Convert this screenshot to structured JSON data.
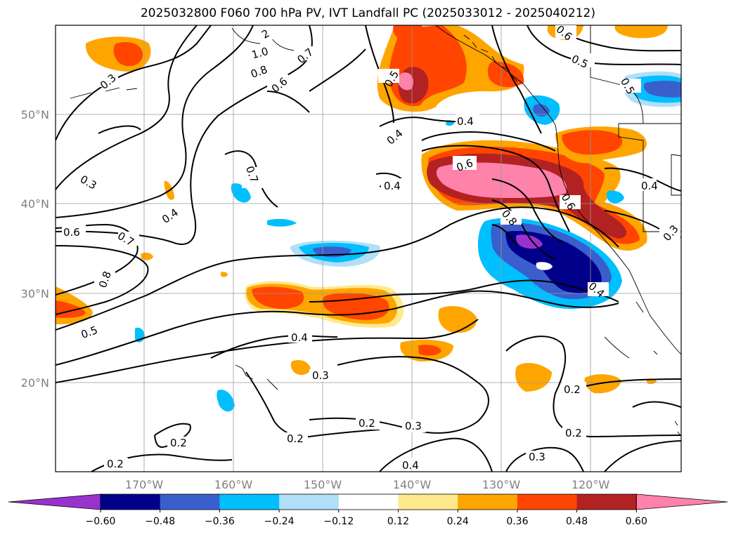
{
  "title": "2025032800 F060 700 hPa PV, IVT Landfall PC (2025033012 - 2025040212)",
  "latitude_labels": [
    "50°N",
    "40°N",
    "30°N",
    "20°N"
  ],
  "longitude_labels": [
    "170°W",
    "160°W",
    "150°W",
    "140°W",
    "130°W",
    "120°W"
  ],
  "contour_labels": [
    "0.2",
    "0.2",
    "0.2",
    "0.2",
    "0.2",
    "0.3",
    "0.3",
    "0.3",
    "0.3",
    "0.3",
    "0.4",
    "0.4",
    "0.4",
    "0.4",
    "0.4",
    "0.4",
    "0.4",
    "0.4",
    "0.5",
    "0.5",
    "0.5",
    "0.5",
    "0.6",
    "0.6",
    "0.6",
    "0.6",
    "0.6",
    "0.6",
    "0.7",
    "0.7",
    "0.7",
    "0.8",
    "0.8",
    "0.8",
    "1.0",
    "2"
  ],
  "colorbar": {
    "ticks": [
      "−0.60",
      "−0.48",
      "−0.36",
      "−0.24",
      "−0.12",
      "0.12",
      "0.24",
      "0.36",
      "0.48",
      "0.60"
    ],
    "colors": [
      "#9932cc",
      "#00008b",
      "#3a5fcd",
      "#00bfff",
      "#b0e0f8",
      "#ffffff",
      "#ffe98c",
      "#ffa500",
      "#ff4500",
      "#b22222",
      "#ff82ab"
    ]
  }
}
